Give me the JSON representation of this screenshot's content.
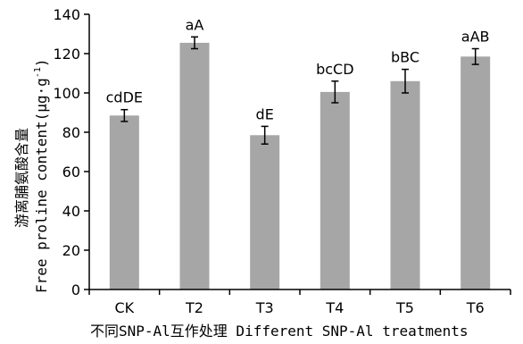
{
  "chart_data": {
    "type": "bar",
    "categories": [
      "CK",
      "T2",
      "T3",
      "T4",
      "T5",
      "T6"
    ],
    "values": [
      88.5,
      125.5,
      78.5,
      100.5,
      106.0,
      118.5
    ],
    "errors": [
      3.0,
      3.0,
      4.5,
      5.5,
      6.0,
      4.0
    ],
    "labels": [
      "cdDE",
      "aA",
      "dE",
      "bcCD",
      "bBC",
      "aAB"
    ],
    "ylim": [
      0,
      140
    ],
    "yticks": [
      0,
      20,
      40,
      60,
      80,
      100,
      120,
      140
    ],
    "xlabel": "不同SNP-Al互作处理 Different SNP-Al treatments",
    "ylabel_cn": "游离脯氨酸含量",
    "ylabel_en": "Free proline content",
    "ylabel_unit": "(μg·g",
    "ylabel_unit_exp": "-1",
    "ylabel_unit_close": ")",
    "bar_color": "#a6a6a6",
    "grid": false,
    "legend": "none"
  }
}
